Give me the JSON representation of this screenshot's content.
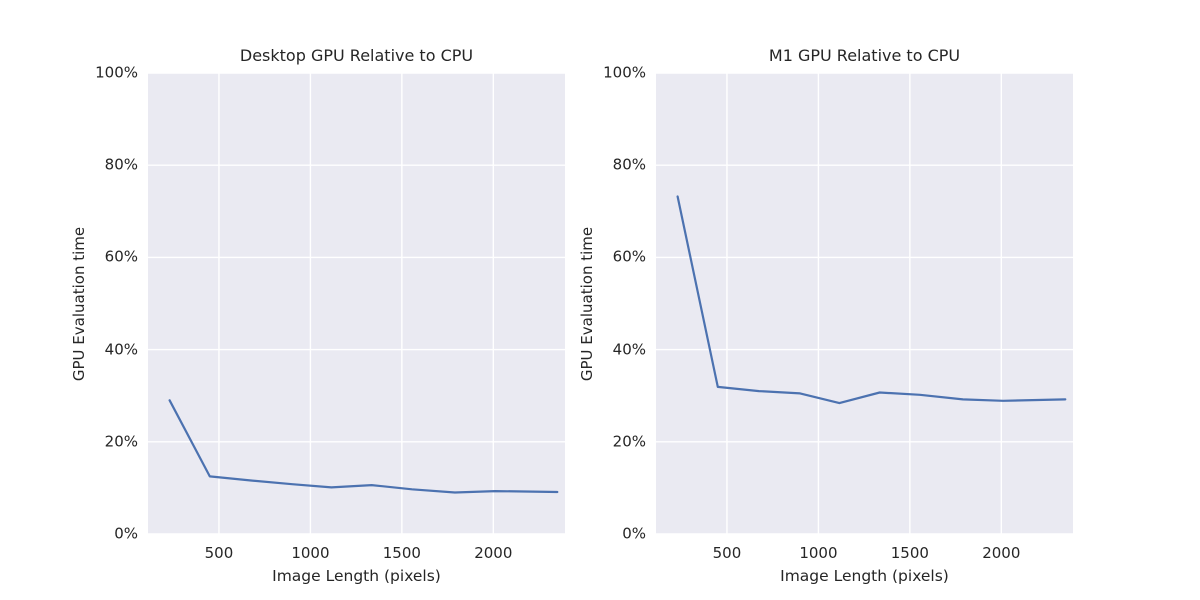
{
  "figure": {
    "background": "#ffffff",
    "panel_background": "#eaeaf2",
    "grid_color": "#ffffff",
    "line_color": "#4c72b0",
    "text_color": "#262626"
  },
  "chart_data": [
    {
      "type": "line",
      "title": "Desktop GPU Relative to CPU",
      "xlabel": "Image Length (pixels)",
      "ylabel": "GPU Evaluation time",
      "x": [
        230,
        450,
        675,
        900,
        1115,
        1335,
        1555,
        1790,
        2010,
        2350
      ],
      "y": [
        29.0,
        12.5,
        11.6,
        10.8,
        10.1,
        10.6,
        9.7,
        9.0,
        9.3,
        9.1
      ],
      "xticks": [
        500,
        1000,
        1500,
        2000
      ],
      "xtick_labels": [
        "500",
        "1000",
        "1500",
        "2000"
      ],
      "yticks": [
        0,
        20,
        40,
        60,
        80,
        100
      ],
      "ytick_labels": [
        "0%",
        "20%",
        "40%",
        "60%",
        "80%",
        "100%"
      ],
      "xlim": [
        112,
        2392
      ],
      "ylim": [
        0,
        100
      ],
      "grid": true,
      "legend": false
    },
    {
      "type": "line",
      "title": "M1 GPU Relative to CPU",
      "xlabel": "Image Length (pixels)",
      "ylabel": "GPU Evaluation time",
      "x": [
        230,
        450,
        675,
        900,
        1115,
        1335,
        1555,
        1790,
        2010,
        2350
      ],
      "y": [
        73.2,
        31.9,
        31.0,
        30.5,
        28.4,
        30.7,
        30.2,
        29.2,
        28.9,
        29.2
      ],
      "xticks": [
        500,
        1000,
        1500,
        2000
      ],
      "xtick_labels": [
        "500",
        "1000",
        "1500",
        "2000"
      ],
      "yticks": [
        0,
        20,
        40,
        60,
        80,
        100
      ],
      "ytick_labels": [
        "0%",
        "20%",
        "40%",
        "60%",
        "80%",
        "100%"
      ],
      "xlim": [
        112,
        2392
      ],
      "ylim": [
        0,
        100
      ],
      "grid": true,
      "legend": false
    }
  ]
}
